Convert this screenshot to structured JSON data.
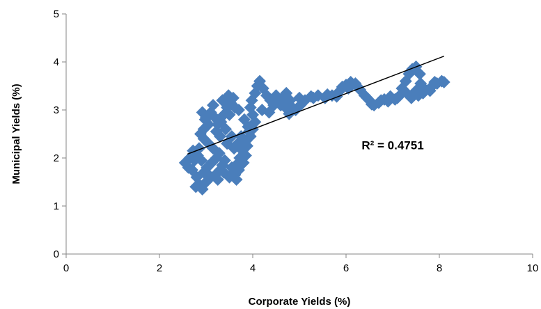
{
  "chart_data": {
    "type": "scatter",
    "title": "",
    "xlabel": "Corporate Yields (%)",
    "ylabel": "Municipal Yields (%)",
    "xlim": [
      0,
      10
    ],
    "ylim": [
      0,
      5
    ],
    "xticks": [
      0,
      2,
      4,
      6,
      8,
      10
    ],
    "yticks": [
      0,
      1,
      2,
      3,
      4,
      5
    ],
    "x_tick_labels": [
      "0",
      "2",
      "4",
      "6",
      "8",
      "10"
    ],
    "y_tick_labels": [
      "0",
      "1",
      "2",
      "3",
      "4",
      "5"
    ],
    "grid": false,
    "legend": "none",
    "marker": "diamond",
    "marker_color": "#4a7ebb",
    "trendline_color": "#000000",
    "trendline": {
      "type": "linear",
      "x": [
        2.6,
        8.1
      ],
      "y": [
        2.08,
        4.12
      ]
    },
    "annotation": {
      "text": "R² = 0.4751"
    },
    "series": [
      {
        "points": [
          [
            2.55,
            1.9
          ],
          [
            2.62,
            1.8
          ],
          [
            2.7,
            1.75
          ],
          [
            2.75,
            1.95
          ],
          [
            2.82,
            2.05
          ],
          [
            2.85,
            1.45
          ],
          [
            2.78,
            1.4
          ],
          [
            2.92,
            1.35
          ],
          [
            3.0,
            1.5
          ],
          [
            3.1,
            1.6
          ],
          [
            3.2,
            1.65
          ],
          [
            3.3,
            1.75
          ],
          [
            3.35,
            1.85
          ],
          [
            3.4,
            1.95
          ],
          [
            3.28,
            2.1
          ],
          [
            3.15,
            2.2
          ],
          [
            3.05,
            2.3
          ],
          [
            2.95,
            2.4
          ],
          [
            2.88,
            2.5
          ],
          [
            2.95,
            2.6
          ],
          [
            3.05,
            2.7
          ],
          [
            3.0,
            2.85
          ],
          [
            2.92,
            2.95
          ],
          [
            2.98,
            2.8
          ],
          [
            3.1,
            2.95
          ],
          [
            3.18,
            2.85
          ],
          [
            3.25,
            2.7
          ],
          [
            3.32,
            2.75
          ],
          [
            3.38,
            2.9
          ],
          [
            3.45,
            3.05
          ],
          [
            3.52,
            3.15
          ],
          [
            3.58,
            3.25
          ],
          [
            3.62,
            3.05
          ],
          [
            3.5,
            2.9
          ],
          [
            3.42,
            2.6
          ],
          [
            3.55,
            2.45
          ],
          [
            3.6,
            2.2
          ],
          [
            3.68,
            2.3
          ],
          [
            3.75,
            2.45
          ],
          [
            3.72,
            2.0
          ],
          [
            3.64,
            1.85
          ],
          [
            3.58,
            1.7
          ],
          [
            3.5,
            1.6
          ],
          [
            3.62,
            1.65
          ],
          [
            3.7,
            1.75
          ],
          [
            3.8,
            1.9
          ],
          [
            3.85,
            2.05
          ],
          [
            3.88,
            2.25
          ],
          [
            3.95,
            2.45
          ],
          [
            4.0,
            2.6
          ],
          [
            4.05,
            2.75
          ],
          [
            4.0,
            2.9
          ],
          [
            3.95,
            3.05
          ],
          [
            3.98,
            3.2
          ],
          [
            4.05,
            3.35
          ],
          [
            4.1,
            3.5
          ],
          [
            4.15,
            3.6
          ],
          [
            4.22,
            3.45
          ],
          [
            4.3,
            3.3
          ],
          [
            4.38,
            3.2
          ],
          [
            4.45,
            3.1
          ],
          [
            4.55,
            3.15
          ],
          [
            4.65,
            3.25
          ],
          [
            4.72,
            3.35
          ],
          [
            4.8,
            3.2
          ],
          [
            4.85,
            3.05
          ],
          [
            4.78,
            2.92
          ],
          [
            4.92,
            3.0
          ],
          [
            5.02,
            3.1
          ],
          [
            5.12,
            3.2
          ],
          [
            5.25,
            3.28
          ],
          [
            5.4,
            3.3
          ],
          [
            5.55,
            3.25
          ],
          [
            5.7,
            3.3
          ],
          [
            5.85,
            3.38
          ],
          [
            5.92,
            3.48
          ],
          [
            6.0,
            3.52
          ],
          [
            6.1,
            3.58
          ],
          [
            6.2,
            3.55
          ],
          [
            6.3,
            3.42
          ],
          [
            6.4,
            3.3
          ],
          [
            6.5,
            3.2
          ],
          [
            6.6,
            3.1
          ],
          [
            6.7,
            3.15
          ],
          [
            6.82,
            3.22
          ],
          [
            6.95,
            3.28
          ],
          [
            7.05,
            3.22
          ],
          [
            7.15,
            3.3
          ],
          [
            7.2,
            3.45
          ],
          [
            7.28,
            3.6
          ],
          [
            7.35,
            3.75
          ],
          [
            7.42,
            3.85
          ],
          [
            7.5,
            3.9
          ],
          [
            7.58,
            3.75
          ],
          [
            7.6,
            3.55
          ],
          [
            7.5,
            3.4
          ],
          [
            7.4,
            3.25
          ],
          [
            7.55,
            3.3
          ],
          [
            7.7,
            3.42
          ],
          [
            7.85,
            3.5
          ],
          [
            7.95,
            3.55
          ],
          [
            8.05,
            3.6
          ],
          [
            8.1,
            3.58
          ],
          [
            2.65,
            2.0
          ],
          [
            2.72,
            2.15
          ],
          [
            2.85,
            2.2
          ],
          [
            2.9,
            1.95
          ],
          [
            3.02,
            1.8
          ],
          [
            3.12,
            1.9
          ],
          [
            3.22,
            2.0
          ],
          [
            3.45,
            2.3
          ],
          [
            3.3,
            2.45
          ],
          [
            3.22,
            2.55
          ],
          [
            3.15,
            3.1
          ],
          [
            3.35,
            3.2
          ],
          [
            3.48,
            3.3
          ],
          [
            3.7,
            3.0
          ],
          [
            3.82,
            2.8
          ],
          [
            3.9,
            2.65
          ],
          [
            4.2,
            3.0
          ],
          [
            4.35,
            2.95
          ],
          [
            4.5,
            3.3
          ],
          [
            4.6,
            3.1
          ],
          [
            4.7,
            3.05
          ],
          [
            5.0,
            3.25
          ],
          [
            5.3,
            3.25
          ],
          [
            5.6,
            3.32
          ],
          [
            5.8,
            3.28
          ],
          [
            6.05,
            3.45
          ],
          [
            6.25,
            3.48
          ],
          [
            6.45,
            3.25
          ],
          [
            6.55,
            3.12
          ],
          [
            6.75,
            3.2
          ],
          [
            6.9,
            3.18
          ],
          [
            7.1,
            3.25
          ],
          [
            7.3,
            3.35
          ],
          [
            7.45,
            3.3
          ],
          [
            7.65,
            3.35
          ],
          [
            7.8,
            3.4
          ],
          [
            7.9,
            3.58
          ],
          [
            2.8,
            1.6
          ],
          [
            2.95,
            1.7
          ],
          [
            3.05,
            1.65
          ],
          [
            3.25,
            1.55
          ],
          [
            3.38,
            1.7
          ],
          [
            3.55,
            1.8
          ],
          [
            3.65,
            1.55
          ],
          [
            3.78,
            2.15
          ],
          [
            3.85,
            2.35
          ],
          [
            3.92,
            2.55
          ]
        ]
      }
    ]
  }
}
